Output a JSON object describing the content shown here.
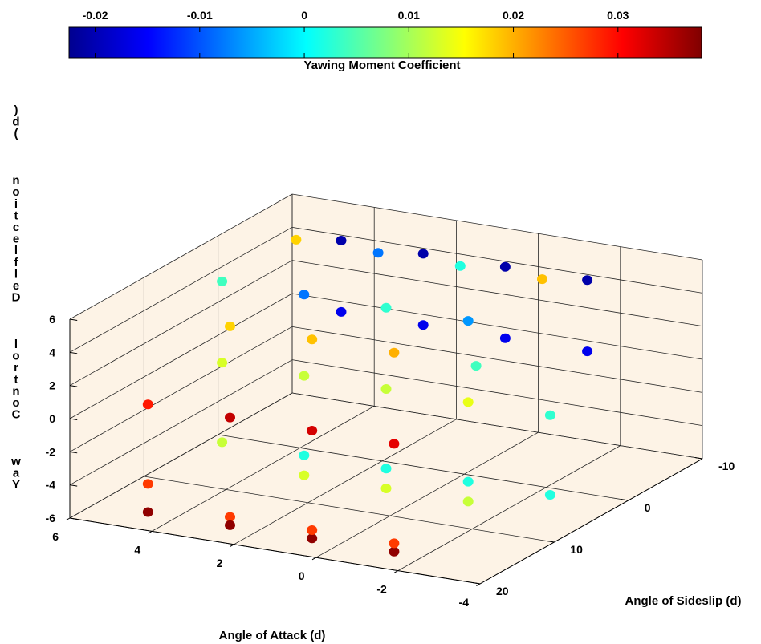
{
  "chart_data": {
    "type": "scatter3d",
    "xlabel": "Angle of Attack (d)",
    "ylabel": "Angle of Sideslip (d)",
    "zlabel": "Yaw Control Deflection (d)",
    "zlabel_as_rendered": ")d(   noitcelfleD   lortnoC   waY",
    "xlim": [
      -4,
      6
    ],
    "ylim": [
      -10,
      20
    ],
    "zlim": [
      -6,
      6
    ],
    "xticks": [
      "6",
      "4",
      "2",
      "0",
      "-2",
      "-4"
    ],
    "yticks": [
      "-10",
      "0",
      "10",
      "20"
    ],
    "zticks": [
      "6",
      "4",
      "2",
      "0",
      "-2",
      "-4",
      "-6"
    ],
    "grid": true,
    "colorbar": {
      "label": "Yawing Moment Coefficient",
      "ticks": [
        "-0.02",
        "-0.01",
        "0",
        "0.01",
        "0.02",
        "0.03"
      ],
      "range": [
        -0.0225,
        0.038
      ],
      "colormap": "jet"
    },
    "points": [
      {
        "x": 5,
        "y": -5,
        "z": 4.9,
        "c": 0.018
      },
      {
        "x": 5,
        "y": 5,
        "z": 4.9,
        "c": 0.004
      },
      {
        "x": 3,
        "y": -5,
        "z": 4.9,
        "c": -0.008
      },
      {
        "x": 3,
        "y": 5,
        "z": 4.9,
        "c": -0.008
      },
      {
        "x": 1,
        "y": -5,
        "z": 4.9,
        "c": 0.002
      },
      {
        "x": 1,
        "y": 5,
        "z": 4.9,
        "c": 0.003
      },
      {
        "x": -1,
        "y": -5,
        "z": 4.9,
        "c": 0.019
      },
      {
        "x": -1,
        "y": 5,
        "z": 4.9,
        "c": -0.006
      },
      {
        "x": 3,
        "y": 0,
        "z": 6.9,
        "c": -0.02
      },
      {
        "x": 1,
        "y": 0,
        "z": 6.9,
        "c": -0.02
      },
      {
        "x": -1,
        "y": 0,
        "z": 6.9,
        "c": -0.02
      },
      {
        "x": -3,
        "y": 0,
        "z": 6.9,
        "c": -0.02
      },
      {
        "x": 3,
        "y": 15,
        "z": 5.5,
        "c": 0.018
      },
      {
        "x": 1,
        "y": 15,
        "z": 5.5,
        "c": 0.019
      },
      {
        "x": -1,
        "y": 15,
        "z": 5.5,
        "c": 0.02
      },
      {
        "x": -3,
        "y": 15,
        "z": 5.5,
        "c": 0.004
      },
      {
        "x": 5,
        "y": 5,
        "z": 0.0,
        "c": 0.013
      },
      {
        "x": 5,
        "y": 15,
        "z": 0.0,
        "c": 0.029
      },
      {
        "x": 3,
        "y": 0,
        "z": 2.6,
        "c": -0.016
      },
      {
        "x": 3,
        "y": 5,
        "z": 0.0,
        "c": 0.012
      },
      {
        "x": 1,
        "y": 0,
        "z": 2.6,
        "c": -0.016
      },
      {
        "x": 1,
        "y": 5,
        "z": 0.0,
        "c": 0.012
      },
      {
        "x": -1,
        "y": 0,
        "z": 2.6,
        "c": -0.016
      },
      {
        "x": -1,
        "y": 5,
        "z": 0.0,
        "c": 0.014
      },
      {
        "x": -3,
        "y": 0,
        "z": 2.6,
        "c": -0.016
      },
      {
        "x": -3,
        "y": 5,
        "z": 0.0,
        "c": 0.003
      },
      {
        "x": 3,
        "y": 15,
        "z": 0.0,
        "c": 0.034
      },
      {
        "x": 1,
        "y": 15,
        "z": 0.0,
        "c": 0.033
      },
      {
        "x": -1,
        "y": 15,
        "z": 0.0,
        "c": 0.032
      },
      {
        "x": 3,
        "y": 5,
        "z": -4.8,
        "c": 0.002
      },
      {
        "x": 1,
        "y": 5,
        "z": -4.8,
        "c": 0.002
      },
      {
        "x": -1,
        "y": 5,
        "z": -4.8,
        "c": 0.002
      },
      {
        "x": -3,
        "y": 5,
        "z": -4.8,
        "c": 0.002
      },
      {
        "x": 5,
        "y": 5,
        "z": -4.8,
        "c": 0.012
      },
      {
        "x": 5,
        "y": 15,
        "z": -4.8,
        "c": 0.027
      },
      {
        "x": 3,
        "y": 5,
        "z": -6.0,
        "c": 0.013
      },
      {
        "x": 3,
        "y": 15,
        "z": -6.0,
        "c": 0.027
      },
      {
        "x": 5,
        "y": 15,
        "z": -6.5,
        "c": 0.037
      },
      {
        "x": 3,
        "y": 15,
        "z": -6.5,
        "c": 0.037
      },
      {
        "x": 1,
        "y": 15,
        "z": -6.5,
        "c": 0.037
      },
      {
        "x": -1,
        "y": 15,
        "z": -6.5,
        "c": 0.037
      },
      {
        "x": 1,
        "y": 5,
        "z": -6.0,
        "c": 0.013
      },
      {
        "x": 1,
        "y": 15,
        "z": -6.0,
        "c": 0.027
      },
      {
        "x": -1,
        "y": 5,
        "z": -6.0,
        "c": 0.012
      },
      {
        "x": -1,
        "y": 15,
        "z": -6.0,
        "c": 0.027
      }
    ]
  }
}
